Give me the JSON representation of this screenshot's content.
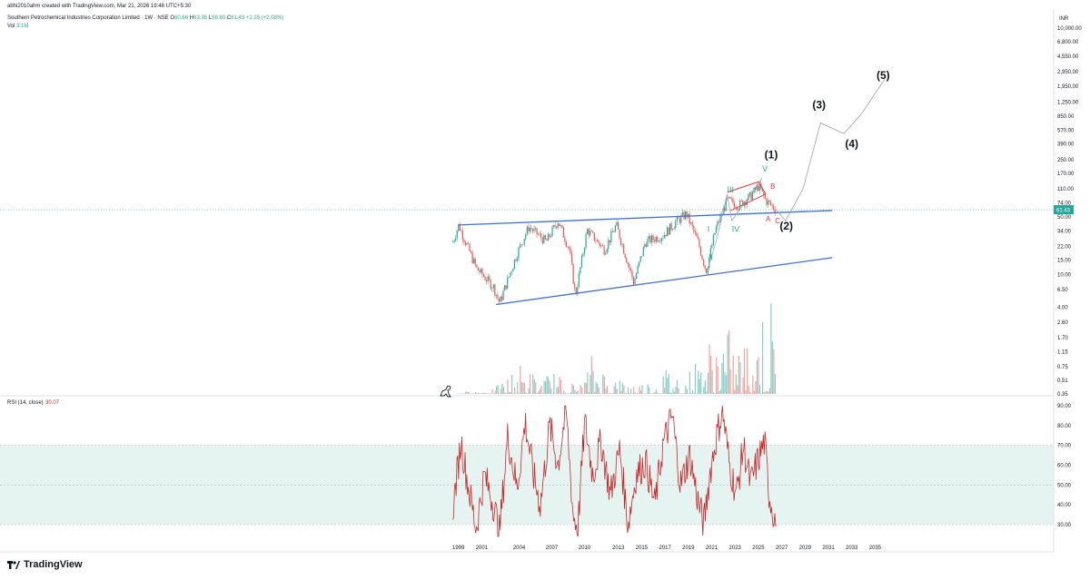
{
  "header": {
    "creator": "abhi2010ahm created with TradingView.com, Mar 21, 2026 19:48 UTC+5:30",
    "symbol": "Southern Petrochemical Industries Corporation Limited · 1W · NSE",
    "ohlc": {
      "open_label": "O",
      "open": "60.66",
      "high_label": "H",
      "high": "63.95",
      "low_label": "L",
      "low": "58.80",
      "close_label": "C",
      "close": "61.43",
      "change": "+1.25 (+2.08%)"
    },
    "volume_label": "Vol",
    "volume": "3.1M"
  },
  "colors": {
    "candle_up": "#26a69a",
    "candle_down": "#ef5350",
    "trendline": "#3f6fd8",
    "rsi_line": "#c62828",
    "rsi_band": "#e6f4f1",
    "price_marker": "#26a69a",
    "projection": "#9e9e9e"
  },
  "chart_data": [
    {
      "type": "line",
      "title": "",
      "scale": "log",
      "currency_label": "INR",
      "price_axis_ticks": [
        10000.0,
        6800.0,
        4550.0,
        2950.0,
        1950.0,
        1250.0,
        850.0,
        570.0,
        390.0,
        250.0,
        170.0,
        110.0,
        74.0,
        50.0,
        34.0,
        22.0,
        15.0,
        10.0,
        6.5,
        4.0,
        2.6,
        1.7,
        1.15,
        0.75,
        0.51,
        0.35
      ],
      "price_axis_tick_labels": [
        "10,000.00",
        "6,800.00",
        "4,550.00",
        "2,950.00",
        "1,950.00",
        "1,250.00",
        "850.00",
        "570.00",
        "390.00",
        "250.00",
        "170.00",
        "110.00",
        "74.00",
        "50.00",
        "34.00",
        "22.00",
        "15.00",
        "10.00",
        "6.50",
        "4.00",
        "2.60",
        "1.70",
        "1.15",
        "0.75",
        "0.51",
        "0.35"
      ],
      "last_price": 61.43,
      "last_price_label": "61.43",
      "x_axis_ticks": [
        "1999",
        "2001",
        "2004",
        "2007",
        "2010",
        "2013",
        "2015",
        "2017",
        "2019",
        "2021",
        "2023",
        "2025",
        "2027",
        "2029",
        "2031",
        "2033",
        "2035"
      ],
      "price_series_approx": {
        "x": [
          1998.5,
          1999.0,
          2000.5,
          2002.0,
          2002.5,
          2004.0,
          2005.0,
          2006.5,
          2007.5,
          2008.5,
          2009.0,
          2010.0,
          2011.5,
          2012.5,
          2014.0,
          2015.0,
          2016.5,
          2017.5,
          2018.5,
          2019.5,
          2020.2,
          2021.0,
          2022.0,
          2023.0,
          2024.0,
          2024.7,
          2025.3,
          2026.2
        ],
        "y": [
          25,
          40,
          12,
          7,
          4.5,
          18,
          38,
          25,
          45,
          20,
          5.5,
          35,
          20,
          40,
          8,
          25,
          30,
          42,
          55,
          25,
          11,
          35,
          80,
          70,
          90,
          120,
          80,
          61.43
        ]
      },
      "trendlines": [
        {
          "name": "upper",
          "from": [
            1999.0,
            40
          ],
          "to": [
            2031.0,
            60
          ]
        },
        {
          "name": "lower",
          "from": [
            2002.2,
            4.3
          ],
          "to": [
            2031.0,
            16
          ]
        }
      ],
      "projection_path": {
        "x": [
          2026.2,
          2027.0,
          2028.5,
          2030.0,
          2032.0,
          2033.5,
          2035.5
        ],
        "y": [
          61.43,
          45,
          110,
          700,
          520,
          900,
          2400
        ]
      },
      "elliott_labels": [
        {
          "text": "(1)",
          "x": 2025.2,
          "y": 260
        },
        {
          "text": "(2)",
          "x": 2026.5,
          "y": 35
        },
        {
          "text": "(3)",
          "x": 2029.3,
          "y": 1050
        },
        {
          "text": "(4)",
          "x": 2032.1,
          "y": 350
        },
        {
          "text": "(5)",
          "x": 2034.8,
          "y": 2400
        },
        {
          "text": "I",
          "x": 2020.3,
          "y": 33
        },
        {
          "text": "II",
          "x": 2020.4,
          "y": 15
        },
        {
          "text": "III",
          "x": 2022.0,
          "y": 100
        },
        {
          "text": "IV",
          "x": 2022.4,
          "y": 33
        },
        {
          "text": "V",
          "x": 2025.0,
          "y": 180
        },
        {
          "text": "A",
          "x": 2025.3,
          "y": 44
        },
        {
          "text": "B",
          "x": 2025.7,
          "y": 110
        },
        {
          "text": "C",
          "x": 2026.1,
          "y": 42
        }
      ]
    },
    {
      "type": "bar",
      "name": "Vol",
      "x": [
        1999.0,
        2002.0,
        2004.5,
        2006.0,
        2007.0,
        2008.0,
        2009.5,
        2010.5,
        2012.0,
        2014.0,
        2015.5,
        2017.0,
        2018.5,
        2020.5,
        2021.5,
        2022.5,
        2023.5,
        2024.5,
        2025.5
      ],
      "values": [
        0.02,
        0.05,
        0.35,
        0.15,
        0.25,
        0.15,
        0.1,
        0.45,
        0.2,
        0.12,
        0.15,
        0.3,
        0.2,
        0.6,
        0.8,
        0.6,
        0.55,
        0.9,
        1.0
      ]
    },
    {
      "type": "line",
      "name": "RSI",
      "title": "RSI (14, close)",
      "value_label": "30.07",
      "y_ticks": [
        90.0,
        80.0,
        70.0,
        60.0,
        50.0,
        40.0,
        30.0
      ],
      "y_tick_labels": [
        "90.00",
        "80.00",
        "70.00",
        "60.00",
        "50.00",
        "40.00",
        "30.00"
      ],
      "band": [
        30,
        70
      ],
      "x": [
        1998.5,
        1999.2,
        1999.8,
        2000.5,
        2001.2,
        2002.0,
        2002.5,
        2003.2,
        2004.0,
        2004.7,
        2005.4,
        2006.0,
        2006.8,
        2007.5,
        2008.2,
        2008.8,
        2009.2,
        2009.8,
        2010.5,
        2011.2,
        2012.0,
        2012.8,
        2013.5,
        2014.2,
        2015.0,
        2015.8,
        2016.5,
        2017.3,
        2018.0,
        2018.8,
        2019.5,
        2020.0,
        2020.5,
        2021.0,
        2021.6,
        2022.2,
        2022.8,
        2023.4,
        2024.0,
        2024.6,
        2025.2,
        2025.6,
        2026.2
      ],
      "values": [
        38,
        72,
        50,
        28,
        55,
        40,
        26,
        75,
        48,
        82,
        55,
        40,
        80,
        60,
        88,
        35,
        28,
        82,
        55,
        72,
        45,
        68,
        30,
        55,
        62,
        40,
        70,
        85,
        50,
        65,
        42,
        30,
        55,
        72,
        88,
        60,
        45,
        70,
        50,
        62,
        72,
        45,
        30.07
      ]
    }
  ],
  "footer": {
    "brand": "TradingView"
  }
}
